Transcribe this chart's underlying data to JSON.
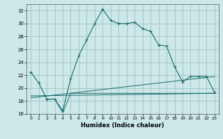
{
  "title": "",
  "xlabel": "Humidex (Indice chaleur)",
  "background_color": "#cce8e8",
  "grid_color": "#99bbbb",
  "line_color": "#1a6b6b",
  "ylim": [
    16,
    33
  ],
  "xlim": [
    -0.5,
    23.5
  ],
  "yticks": [
    16,
    18,
    20,
    22,
    24,
    26,
    28,
    30,
    32
  ],
  "xticks": [
    0,
    1,
    2,
    3,
    4,
    5,
    6,
    7,
    8,
    9,
    10,
    11,
    12,
    13,
    14,
    15,
    16,
    17,
    18,
    19,
    20,
    21,
    22,
    23
  ],
  "series": [
    {
      "x": [
        0,
        1,
        2,
        3,
        4,
        5,
        6,
        7,
        8,
        9,
        10,
        11,
        12,
        13,
        14,
        15,
        16,
        17,
        18,
        19,
        20,
        21,
        22,
        23
      ],
      "y": [
        22.5,
        20.8,
        18.3,
        18.3,
        16.5,
        21.5,
        25.0,
        27.5,
        30.0,
        32.2,
        30.5,
        30.0,
        30.0,
        30.2,
        29.2,
        28.8,
        26.7,
        26.5,
        23.3,
        21.0,
        21.8,
        21.8,
        21.8,
        19.3
      ],
      "marker": "+"
    },
    {
      "x": [
        2,
        3,
        4,
        5,
        23
      ],
      "y": [
        18.3,
        18.3,
        16.2,
        19.2,
        19.2
      ],
      "marker": null
    },
    {
      "x": [
        0,
        23
      ],
      "y": [
        18.5,
        21.8
      ],
      "marker": null
    },
    {
      "x": [
        0,
        23
      ],
      "y": [
        18.8,
        19.2
      ],
      "marker": null
    }
  ]
}
